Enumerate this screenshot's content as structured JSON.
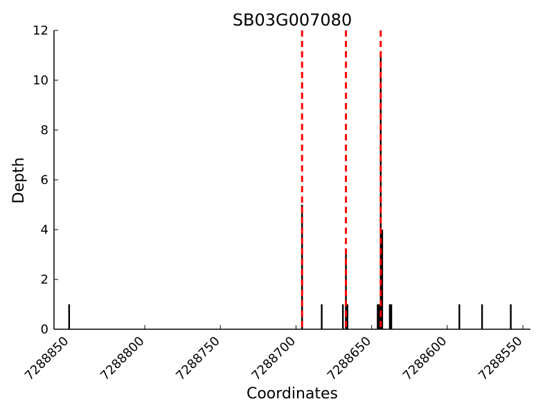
{
  "chart_data": {
    "type": "bar",
    "title": "SB03G007080",
    "xlabel": "Coordinates",
    "ylabel": "Depth",
    "xlim": [
      7288860,
      7288545
    ],
    "x_reversed": true,
    "ylim": [
      0,
      12
    ],
    "x_ticks": [
      7288850,
      7288800,
      7288750,
      7288700,
      7288650,
      7288600,
      7288550
    ],
    "x_tick_labels": [
      "7288850",
      "7288800",
      "7288750",
      "7288700",
      "7288650",
      "7288600",
      "7288550"
    ],
    "y_ticks": [
      0,
      2,
      4,
      6,
      8,
      10,
      12
    ],
    "y_tick_labels": [
      "0",
      "2",
      "4",
      "6",
      "8",
      "10",
      "12"
    ],
    "grid": false,
    "bar_color": "#000000",
    "series": [
      {
        "x": [
          7288850,
          7288696,
          7288683,
          7288669,
          7288667,
          7288666,
          7288646,
          7288645,
          7288644,
          7288643,
          7288638,
          7288637,
          7288592,
          7288577,
          7288558
        ],
        "values": [
          1,
          5,
          1,
          1,
          3,
          1,
          1,
          1,
          11,
          4,
          1,
          1,
          1,
          1,
          1
        ]
      }
    ],
    "reference_lines": {
      "color": "#ff0000",
      "style": "dashed",
      "x": [
        7288696,
        7288667,
        7288644
      ]
    }
  }
}
